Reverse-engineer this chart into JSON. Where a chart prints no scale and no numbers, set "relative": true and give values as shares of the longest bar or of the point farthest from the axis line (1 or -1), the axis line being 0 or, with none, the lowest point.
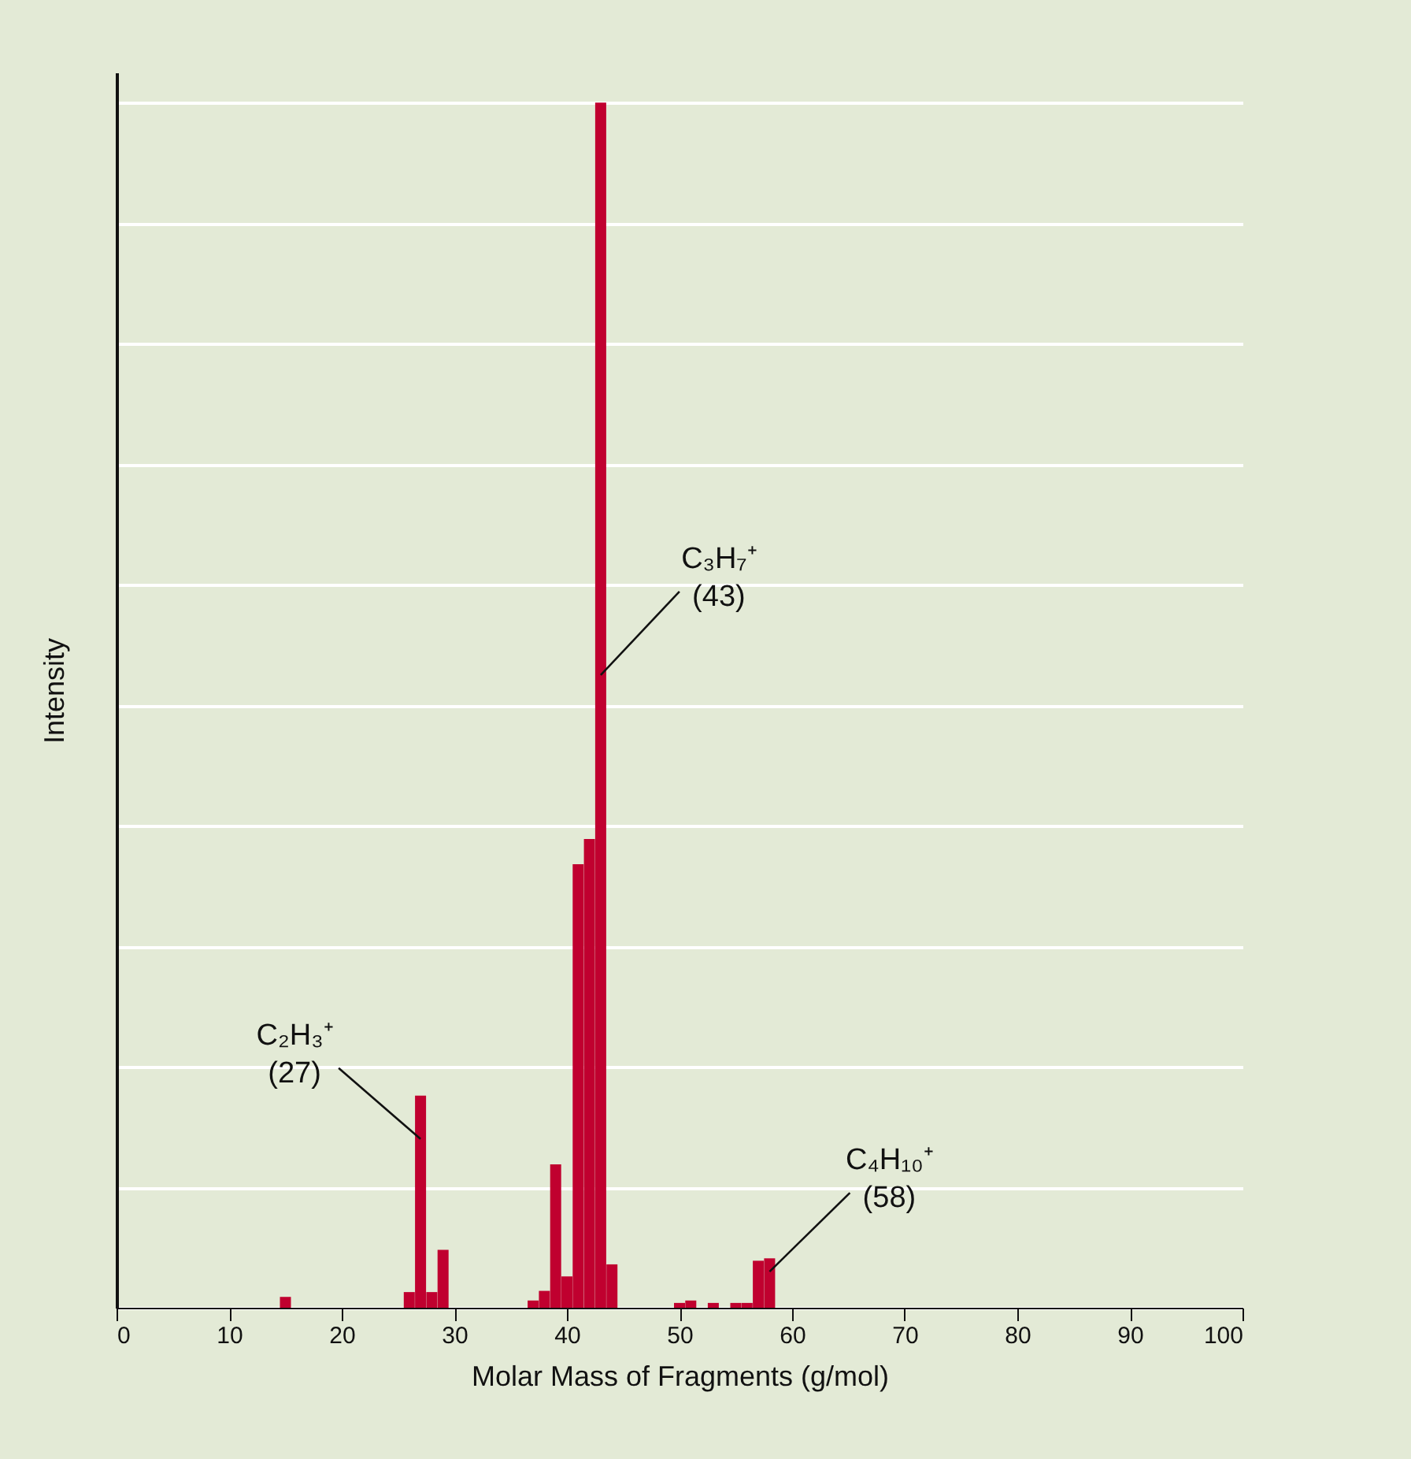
{
  "chart_data": {
    "type": "bar",
    "relative": true,
    "xlabel": "Molar Mass of Fragments (g/mol)",
    "ylabel": "Intensity",
    "x": [
      15,
      26,
      27,
      28,
      29,
      37,
      38,
      39,
      40,
      41,
      42,
      43,
      44,
      50,
      51,
      53,
      55,
      56,
      57,
      58
    ],
    "values": [
      0.009,
      0.013,
      0.176,
      0.013,
      0.048,
      0.006,
      0.014,
      0.119,
      0.026,
      0.368,
      0.389,
      1.0,
      0.036,
      0.004,
      0.006,
      0.004,
      0.004,
      0.004,
      0.039,
      0.041
    ],
    "color": "#c0002f",
    "xlim": [
      0,
      100
    ],
    "xticks": [
      0,
      10,
      20,
      30,
      40,
      50,
      60,
      70,
      80,
      90,
      100
    ],
    "grid": "y",
    "legend": false,
    "annotations": [
      {
        "text": "C₂H₃⁺\n(27)",
        "x": 27,
        "y": 0.14
      },
      {
        "text": "C₃H₇⁺\n(43)",
        "x": 43,
        "y": 0.525
      },
      {
        "text": "C₄H₁₀⁺\n(58)",
        "x": 58,
        "y": 0.03
      }
    ]
  }
}
